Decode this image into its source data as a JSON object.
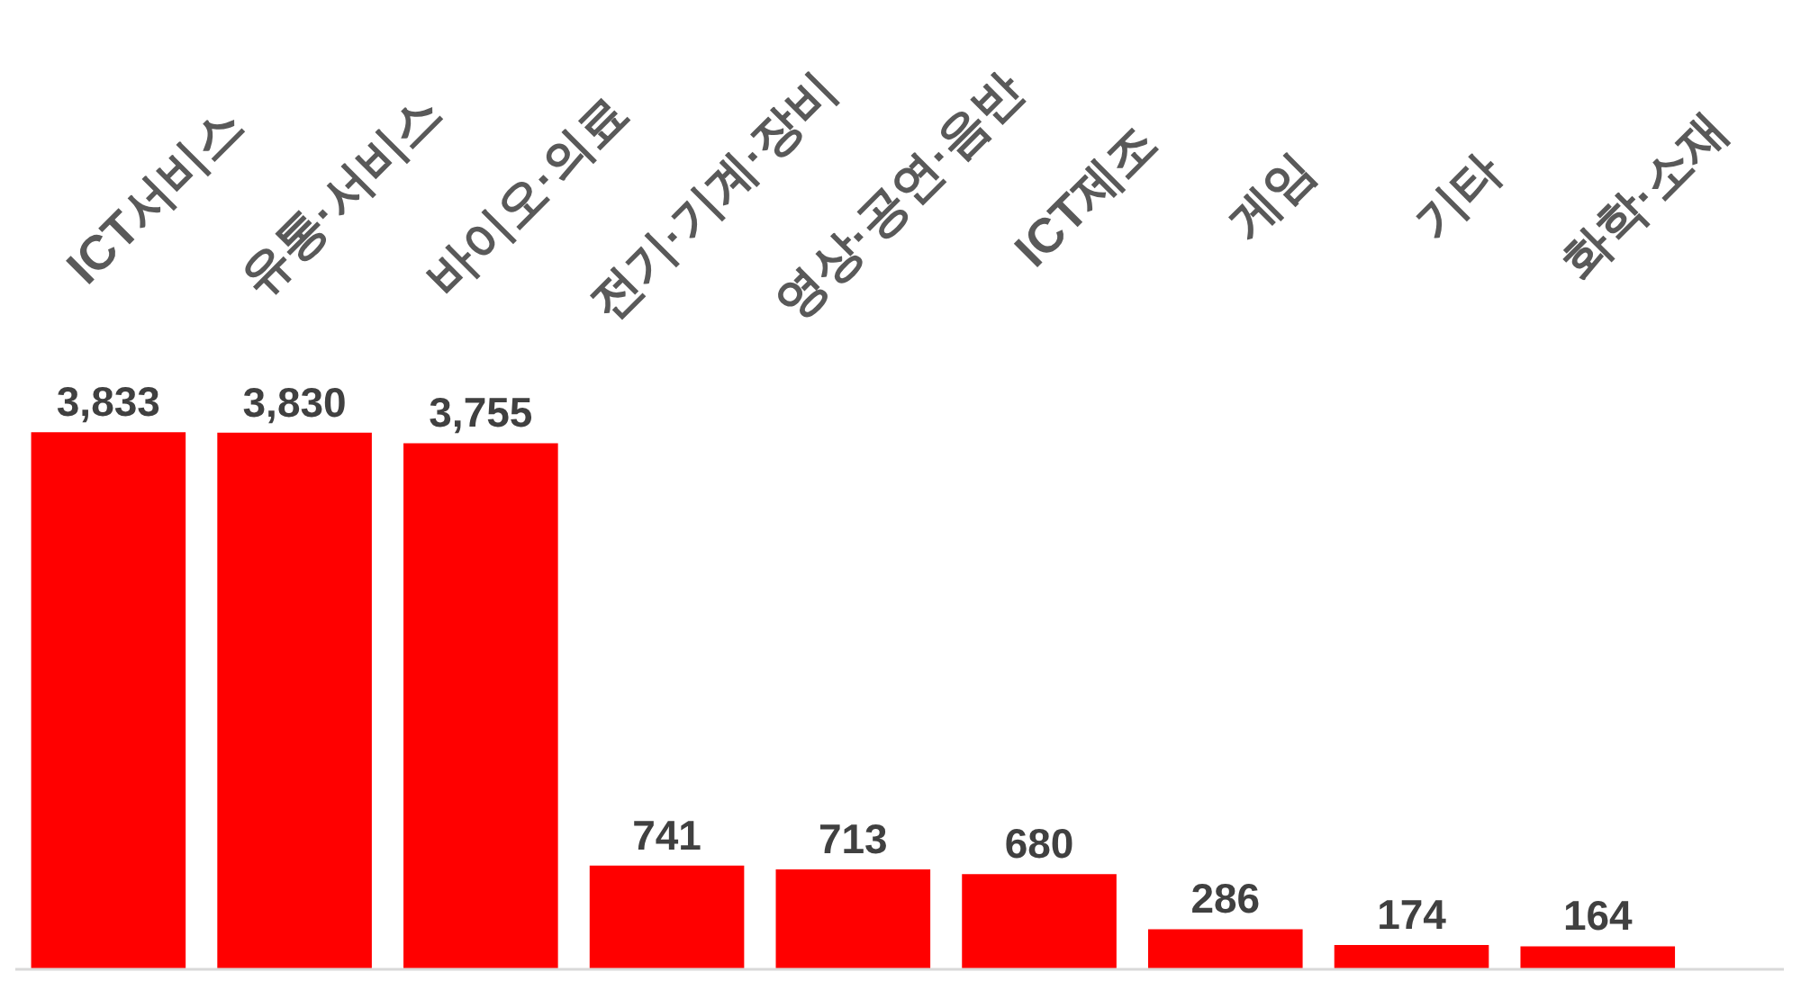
{
  "chart_data": {
    "type": "bar",
    "categories": [
      "ICT서비스",
      "유통·서비스",
      "바이오·의료",
      "전기·기계·장비",
      "영상·공연·음반",
      "ICT제조",
      "게임",
      "기타",
      "화학·소재"
    ],
    "values": [
      3833,
      3830,
      3755,
      741,
      713,
      680,
      286,
      174,
      164
    ],
    "value_labels": [
      "3,833",
      "3,830",
      "3,755",
      "741",
      "713",
      "680",
      "286",
      "174",
      "164"
    ],
    "color": "#ff0000",
    "grid": false,
    "tick_labels": "x"
  }
}
